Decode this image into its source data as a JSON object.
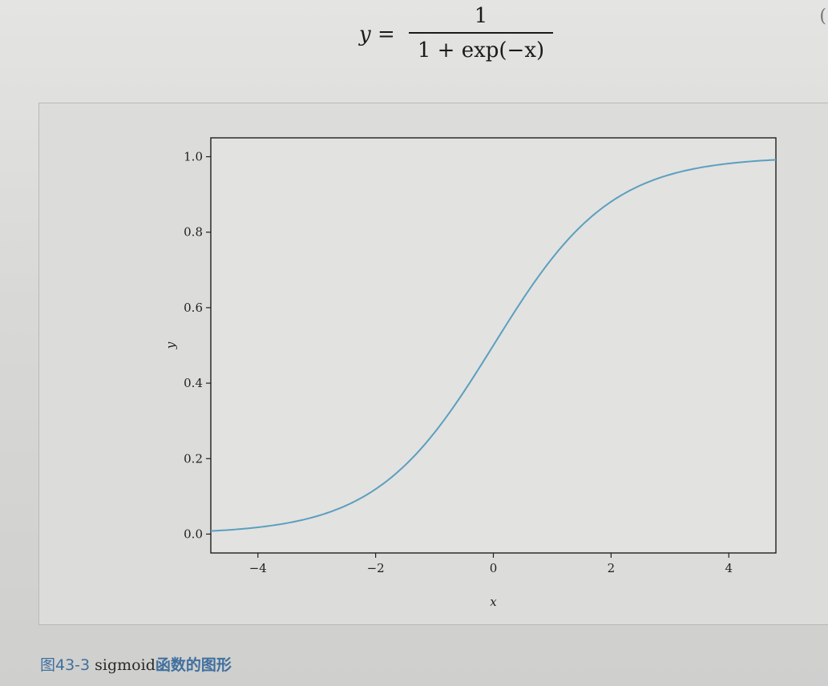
{
  "formula": {
    "lhs": "y =",
    "numerator": "1",
    "denominator": "1 + exp(−x)"
  },
  "side_glyph": "(",
  "caption": {
    "figure_number": "图43-3",
    "text_en": "sigmoid",
    "text_cn": "函数的图形"
  },
  "colors": {
    "curve": "#5b9fbf",
    "axis": "#1f1f1f"
  },
  "chart_data": {
    "type": "line",
    "title": "",
    "xlabel": "x",
    "ylabel": "y",
    "xlim": [
      -4.8,
      4.8
    ],
    "ylim": [
      -0.05,
      1.05
    ],
    "xticks": [
      -4,
      -2,
      0,
      2,
      4
    ],
    "xtick_labels": [
      "−4",
      "−2",
      "0",
      "2",
      "4"
    ],
    "yticks": [
      0.0,
      0.2,
      0.4,
      0.6,
      0.8,
      1.0
    ],
    "ytick_labels": [
      "0.0",
      "0.2",
      "0.4",
      "0.6",
      "0.8",
      "1.0"
    ],
    "grid": false,
    "series": [
      {
        "function": "sigmoid",
        "x": [
          -4.8,
          -4.0,
          -3.0,
          -2.0,
          -1.0,
          0.0,
          1.0,
          2.0,
          3.0,
          4.0,
          4.8
        ],
        "y": [
          0.008,
          0.018,
          0.047,
          0.119,
          0.269,
          0.5,
          0.731,
          0.881,
          0.953,
          0.982,
          0.992
        ]
      }
    ]
  }
}
